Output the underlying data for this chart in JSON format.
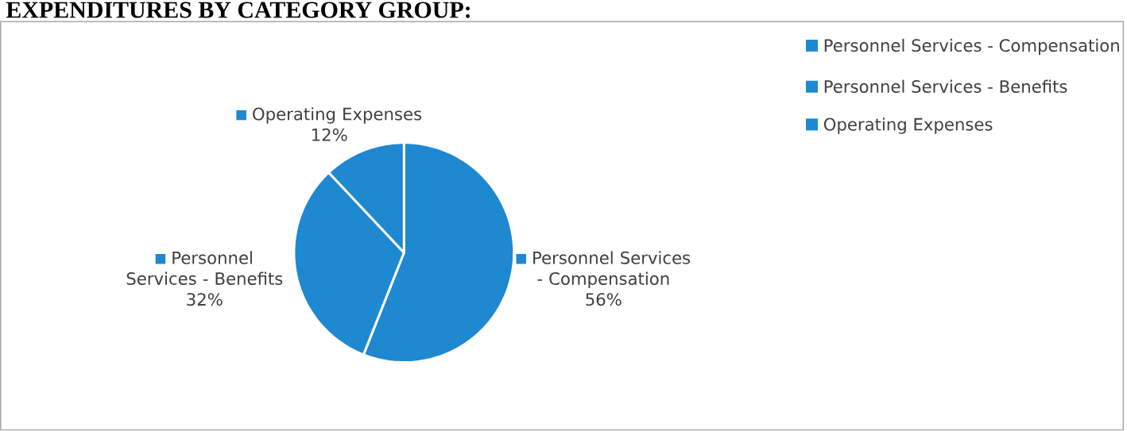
{
  "chart_data": {
    "type": "pie",
    "title": "EXPENDITURES BY CATEGORY GROUP:",
    "categories": [
      "Personnel Services - Compensation",
      "Personnel Services - Benefits",
      "Operating Expenses"
    ],
    "values": [
      56,
      32,
      12
    ],
    "value_labels": [
      "56%",
      "32%",
      "12%"
    ],
    "colors": [
      "#1e88d0",
      "#1e88d0",
      "#1e88d0"
    ],
    "legend": "top right"
  }
}
